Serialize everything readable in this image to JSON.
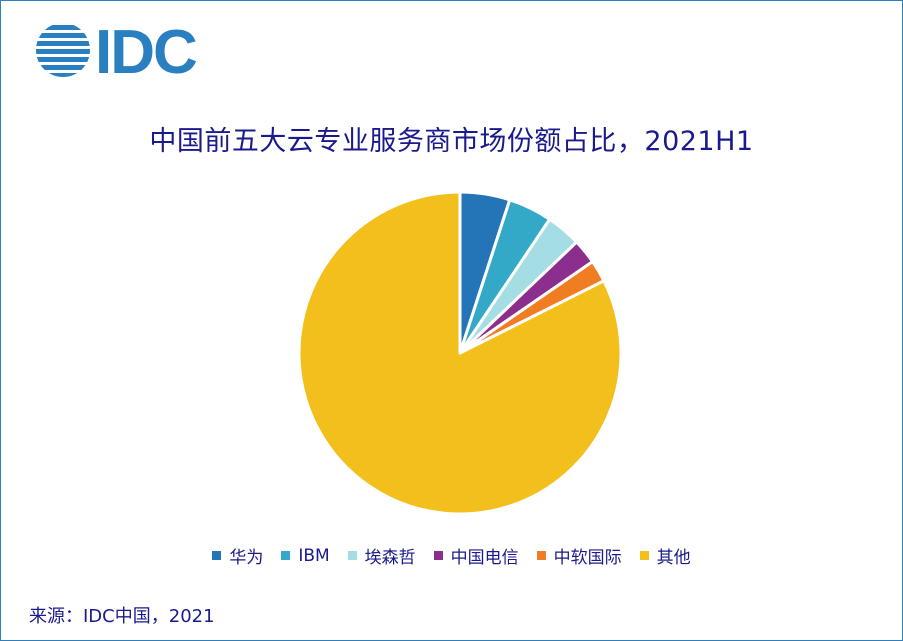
{
  "logo_text": "IDC",
  "colors": {
    "brand": "#2a7fc1",
    "title": "#1a1a8c"
  },
  "chart_data": {
    "type": "pie",
    "title": "中国前五大云专业服务商市场份额占比，2021H1",
    "categories": [
      "华为",
      "IBM",
      "埃森哲",
      "中国电信",
      "中软国际",
      "其他"
    ],
    "values": [
      5.0,
      4.4,
      3.5,
      2.5,
      2.2,
      82.4
    ],
    "colors": [
      "#2474b8",
      "#34a9c7",
      "#a5dde5",
      "#8b2e8e",
      "#f17d22",
      "#f3bf1d"
    ],
    "start": "12 o'clock",
    "direction": "clockwise",
    "legend_position": "bottom"
  },
  "source": "来源：IDC中国，2021"
}
